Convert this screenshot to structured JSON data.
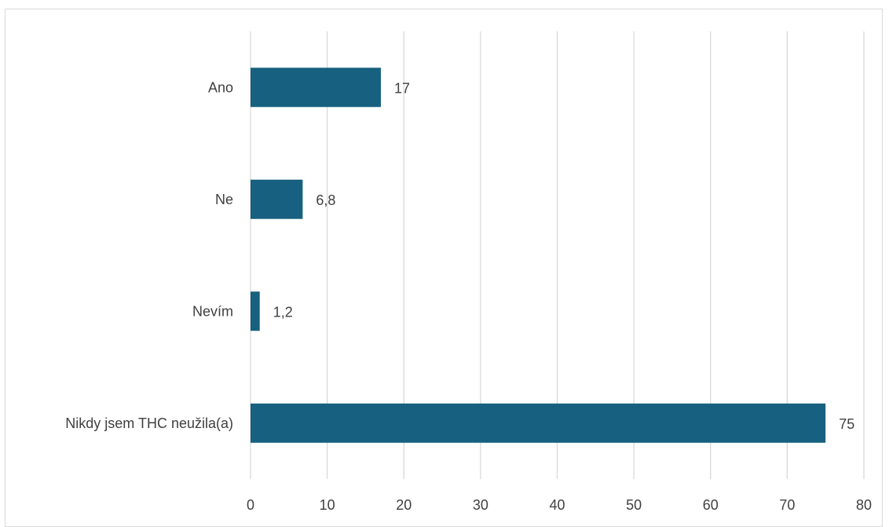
{
  "chart_data": {
    "type": "bar",
    "orientation": "horizontal",
    "categories": [
      "Ano",
      "Ne",
      "Nevím",
      "Nikdy jsem THC neužila(a)"
    ],
    "values": [
      17,
      6.8,
      1.2,
      75
    ],
    "value_labels": [
      "17",
      "6,8",
      "1,2",
      "75"
    ],
    "xlim": [
      0,
      80
    ],
    "xticks": [
      0,
      10,
      20,
      30,
      40,
      50,
      60,
      70,
      80
    ],
    "title": "",
    "xlabel": "",
    "ylabel": "",
    "grid": "vertical",
    "legend": "none",
    "bar_color": "#17607f",
    "grid_color": "#d9d9d9"
  }
}
